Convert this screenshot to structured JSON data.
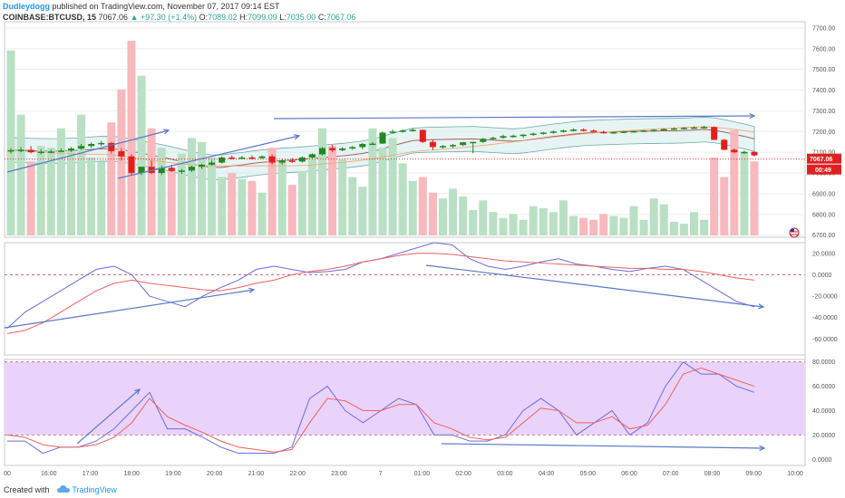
{
  "header": {
    "author": "Dudleydogg",
    "published": "published on TradingView.com, November 07, 2017 09:14 EST",
    "symbol": "COINBASE:BTCUSD, 15",
    "last": "7067.06",
    "arrow": "▲",
    "change": "+97.30 (+1.4%)",
    "o_label": "O:",
    "o": "7089.02",
    "h_label": "H:",
    "h": "7099.09",
    "l_label": "L:",
    "l": "7035.00",
    "c_label": "C:",
    "c": "7067.06"
  },
  "footer": {
    "created": "Created with",
    "brand": "TradingView",
    "logo_icon": "tradingview-cloud-icon"
  },
  "price_tag": "7067.06",
  "countdown_tag": "00:49",
  "flag_icon": "us-flag-icon",
  "colors": {
    "up": "#1e8a1e",
    "down": "#e02020",
    "vol_up": "#b9e0c4",
    "vol_down": "#f7b9bd",
    "band": "#c9e7e6",
    "macd": "#6b6bde",
    "signal": "#f06060",
    "stoch_bg": "#e9d3fb",
    "arrow": "#5a79c9",
    "ema_slow": "#f5a26b",
    "ema_mid": "#a86060"
  },
  "chart_data": [
    {
      "type": "candlestick",
      "yticks": [
        "7700.00",
        "7600.00",
        "7500.00",
        "7400.00",
        "7300.00",
        "7200.00",
        "7100.00",
        "7000.00",
        "6900.00",
        "6800.00",
        "6700.00"
      ],
      "ylim": [
        6690,
        7730
      ],
      "xticks": [
        "00",
        "16:00",
        "17:00",
        "18:00",
        "19:00",
        "20:00",
        "21:00",
        "22:00",
        "23:00",
        "7",
        "01:00",
        "02:00",
        "03:00",
        "04:00",
        "05:00",
        "06:00",
        "07:00",
        "08:00",
        "09:00",
        "10:00"
      ],
      "candles": [
        [
          7105,
          7120,
          7095,
          7110
        ],
        [
          7110,
          7125,
          7100,
          7112
        ],
        [
          7112,
          7130,
          7095,
          7100
        ],
        [
          7100,
          7115,
          7090,
          7103
        ],
        [
          7103,
          7112,
          7095,
          7104
        ],
        [
          7104,
          7118,
          7100,
          7108
        ],
        [
          7108,
          7125,
          7102,
          7118
        ],
        [
          7118,
          7140,
          7110,
          7130
        ],
        [
          7130,
          7148,
          7122,
          7140
        ],
        [
          7140,
          7155,
          7130,
          7145
        ],
        [
          7145,
          7150,
          7095,
          7105
        ],
        [
          7105,
          7120,
          7060,
          7080
        ],
        [
          7080,
          7090,
          6990,
          7000
        ],
        [
          7000,
          7030,
          6990,
          7030
        ],
        [
          7030,
          7060,
          6995,
          7000
        ],
        [
          7000,
          7035,
          6990,
          7025
        ],
        [
          7025,
          7040,
          7005,
          7010
        ],
        [
          7010,
          7020,
          6995,
          7012
        ],
        [
          7012,
          7035,
          7005,
          7030
        ],
        [
          7030,
          7045,
          7020,
          7040
        ],
        [
          7040,
          7060,
          7035,
          7050
        ],
        [
          7050,
          7080,
          7045,
          7075
        ],
        [
          7075,
          7085,
          7065,
          7070
        ],
        [
          7070,
          7082,
          7068,
          7075
        ],
        [
          7075,
          7085,
          7065,
          7072
        ],
        [
          7072,
          7085,
          7068,
          7080
        ],
        [
          7080,
          7090,
          7040,
          7050
        ],
        [
          7050,
          7065,
          7040,
          7060
        ],
        [
          7060,
          7072,
          7048,
          7055
        ],
        [
          7055,
          7080,
          7050,
          7075
        ],
        [
          7075,
          7095,
          7070,
          7090
        ],
        [
          7090,
          7125,
          7085,
          7120
        ],
        [
          7120,
          7135,
          7100,
          7110
        ],
        [
          7110,
          7125,
          7105,
          7118
        ],
        [
          7118,
          7130,
          7112,
          7125
        ],
        [
          7125,
          7145,
          7115,
          7140
        ],
        [
          7140,
          7150,
          7135,
          7142
        ],
        [
          7142,
          7200,
          7140,
          7195
        ],
        [
          7195,
          7210,
          7190,
          7200
        ],
        [
          7200,
          7210,
          7195,
          7205
        ],
        [
          7205,
          7215,
          7200,
          7208
        ],
        [
          7208,
          7210,
          7145,
          7150
        ],
        [
          7150,
          7160,
          7110,
          7125
        ],
        [
          7125,
          7135,
          7118,
          7130
        ],
        [
          7130,
          7140,
          7120,
          7135
        ],
        [
          7135,
          7150,
          7130,
          7148
        ],
        [
          7148,
          7150,
          7095,
          7150
        ],
        [
          7150,
          7170,
          7145,
          7165
        ],
        [
          7165,
          7175,
          7160,
          7170
        ],
        [
          7170,
          7185,
          7165,
          7178
        ],
        [
          7178,
          7185,
          7170,
          7180
        ],
        [
          7180,
          7188,
          7170,
          7185
        ],
        [
          7185,
          7195,
          7180,
          7190
        ],
        [
          7190,
          7198,
          7185,
          7195
        ],
        [
          7195,
          7205,
          7190,
          7200
        ],
        [
          7200,
          7210,
          7195,
          7205
        ],
        [
          7205,
          7215,
          7200,
          7210
        ],
        [
          7210,
          7215,
          7200,
          7205
        ],
        [
          7205,
          7210,
          7195,
          7198
        ],
        [
          7198,
          7205,
          7190,
          7195
        ],
        [
          7195,
          7200,
          7190,
          7197
        ],
        [
          7197,
          7202,
          7192,
          7200
        ],
        [
          7200,
          7205,
          7195,
          7202
        ],
        [
          7202,
          7208,
          7198,
          7205
        ],
        [
          7205,
          7212,
          7200,
          7208
        ],
        [
          7208,
          7215,
          7205,
          7212
        ],
        [
          7212,
          7220,
          7208,
          7215
        ],
        [
          7215,
          7222,
          7210,
          7218
        ],
        [
          7218,
          7225,
          7212,
          7220
        ],
        [
          7220,
          7228,
          7215,
          7222
        ],
        [
          7222,
          7225,
          7160,
          7160
        ],
        [
          7160,
          7165,
          7110,
          7112
        ],
        [
          7112,
          7118,
          7095,
          7100
        ],
        [
          7100,
          7108,
          7092,
          7102
        ],
        [
          7102,
          7105,
          7080,
          7085
        ]
      ],
      "volume": [
        0.95,
        0.62,
        0.38,
        0.46,
        0.45,
        0.55,
        0.44,
        0.62,
        0.4,
        0.38,
        0.58,
        0.75,
        1.0,
        0.82,
        0.55,
        0.45,
        0.34,
        0.42,
        0.5,
        0.48,
        0.4,
        0.3,
        0.32,
        0.29,
        0.28,
        0.22,
        0.45,
        0.38,
        0.26,
        0.33,
        0.42,
        0.55,
        0.46,
        0.39,
        0.3,
        0.25,
        0.55,
        0.45,
        0.5,
        0.37,
        0.28,
        0.3,
        0.22,
        0.19,
        0.24,
        0.2,
        0.13,
        0.18,
        0.12,
        0.09,
        0.11,
        0.08,
        0.15,
        0.14,
        0.12,
        0.18,
        0.1,
        0.09,
        0.08,
        0.11,
        0.1,
        0.09,
        0.15,
        0.08,
        0.19,
        0.16,
        0.07,
        0.06,
        0.12,
        0.08,
        0.4,
        0.3,
        0.54,
        0.43,
        0.38
      ]
    },
    {
      "type": "line",
      "yticks": [
        "20.0000",
        "0.0000",
        "-20.0000",
        "-40.0000",
        "-60.0000"
      ],
      "ylim": [
        -75,
        30
      ],
      "series": [
        {
          "values": [
            -50,
            -35,
            -25,
            -15,
            -5,
            5,
            8,
            0,
            -20,
            -25,
            -30,
            -20,
            -12,
            -5,
            5,
            8,
            5,
            2,
            3,
            5,
            12,
            15,
            20,
            25,
            30,
            28,
            15,
            8,
            5,
            8,
            12,
            15,
            10,
            8,
            5,
            3,
            6,
            8,
            5,
            -5,
            -15,
            -25,
            -30
          ]
        },
        {
          "values": [
            -55,
            -52,
            -45,
            -35,
            -25,
            -15,
            -8,
            -5,
            -8,
            -10,
            -12,
            -14,
            -15,
            -12,
            -8,
            -5,
            0,
            3,
            5,
            8,
            12,
            15,
            18,
            20,
            20,
            19,
            17,
            15,
            13,
            12,
            11,
            10,
            9,
            8,
            7,
            6,
            6,
            5,
            5,
            3,
            0,
            -3,
            -5
          ]
        }
      ]
    },
    {
      "type": "line",
      "yticks": [
        "80.0000",
        "60.0000",
        "40.0000",
        "20.0000",
        "0.0000"
      ],
      "ylim": [
        -5,
        82
      ],
      "series": [
        {
          "values": [
            15,
            15,
            5,
            10,
            10,
            15,
            25,
            40,
            55,
            25,
            25,
            18,
            10,
            5,
            5,
            5,
            10,
            50,
            60,
            40,
            30,
            40,
            50,
            45,
            20,
            20,
            15,
            15,
            20,
            40,
            50,
            40,
            20,
            30,
            40,
            20,
            30,
            60,
            80,
            70,
            70,
            60,
            55
          ]
        },
        {
          "values": [
            20,
            18,
            12,
            10,
            10,
            12,
            18,
            30,
            50,
            35,
            28,
            22,
            15,
            10,
            8,
            6,
            8,
            30,
            50,
            48,
            40,
            40,
            45,
            45,
            30,
            25,
            18,
            16,
            18,
            30,
            42,
            40,
            30,
            30,
            35,
            25,
            28,
            45,
            70,
            75,
            70,
            65,
            60
          ]
        }
      ]
    }
  ]
}
